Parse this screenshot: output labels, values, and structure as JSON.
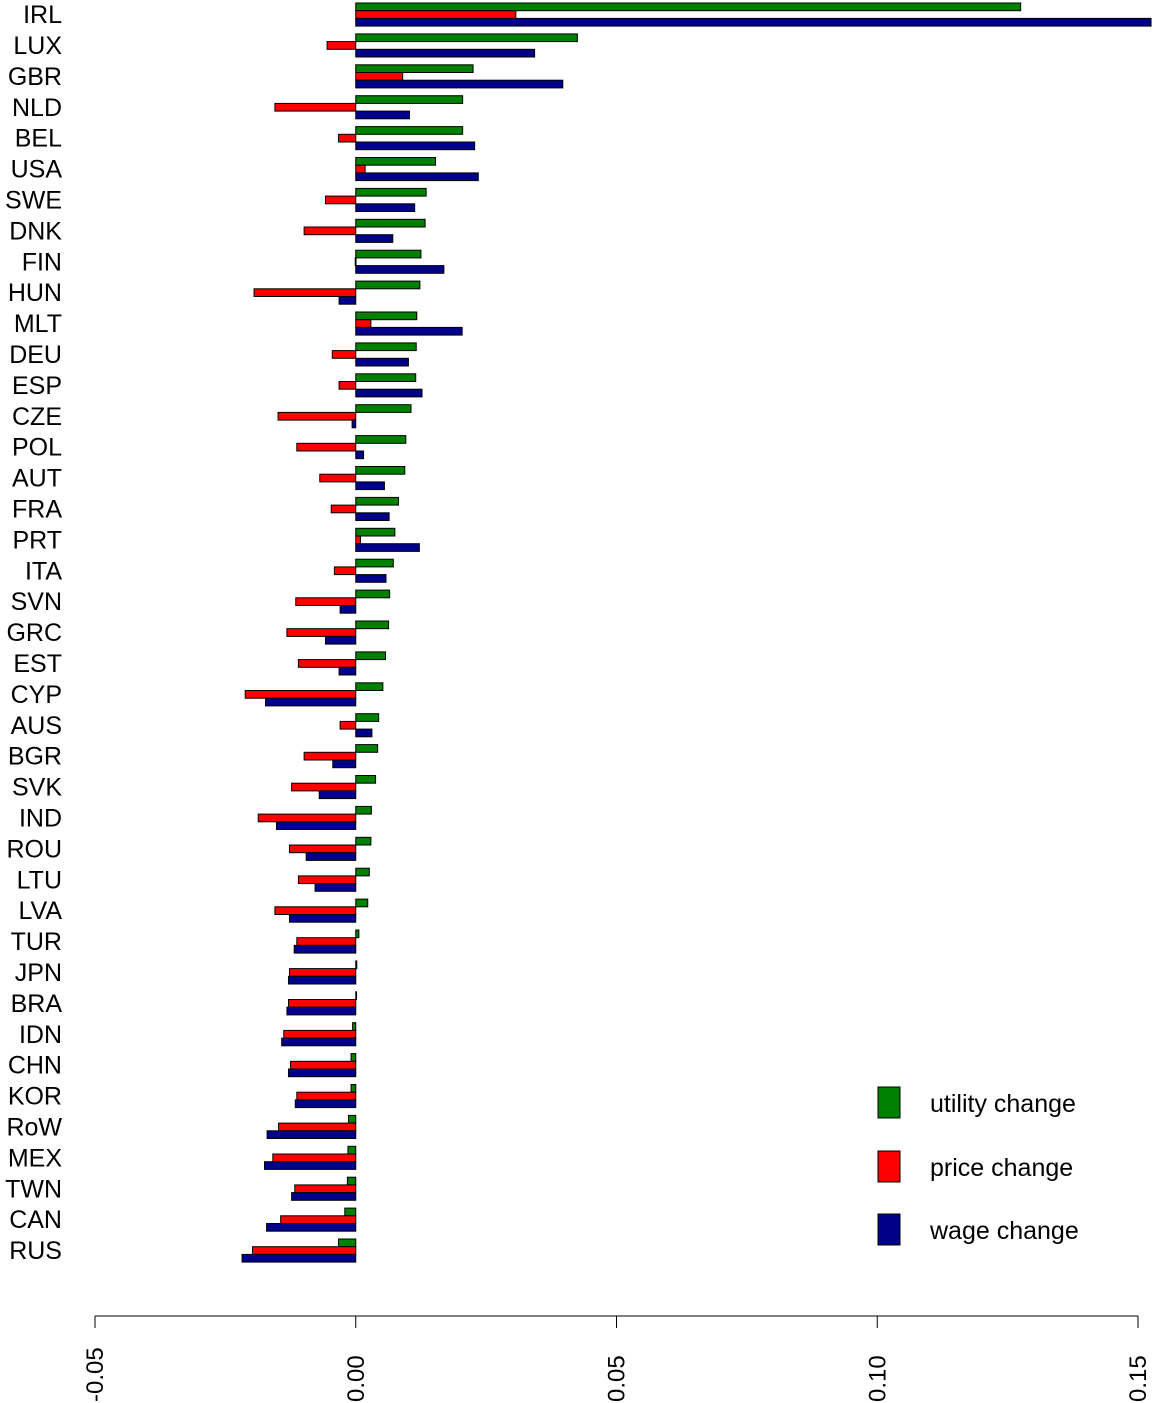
{
  "chart_data": {
    "type": "bar",
    "orientation": "horizontal",
    "categories": [
      "IRL",
      "LUX",
      "GBR",
      "NLD",
      "BEL",
      "USA",
      "SWE",
      "DNK",
      "FIN",
      "HUN",
      "MLT",
      "DEU",
      "ESP",
      "CZE",
      "POL",
      "AUT",
      "FRA",
      "PRT",
      "ITA",
      "SVN",
      "GRC",
      "EST",
      "CYP",
      "AUS",
      "BGR",
      "SVK",
      "IND",
      "ROU",
      "LTU",
      "LVA",
      "TUR",
      "JPN",
      "BRA",
      "IDN",
      "CHN",
      "KOR",
      "RoW",
      "MEX",
      "TWN",
      "CAN",
      "RUS"
    ],
    "series": [
      {
        "name": "utility change",
        "color": "#008000",
        "values": [
          0.1275,
          0.0425,
          0.0225,
          0.0205,
          0.0205,
          0.0153,
          0.0135,
          0.0133,
          0.0125,
          0.0123,
          0.0117,
          0.0116,
          0.0115,
          0.0106,
          0.0096,
          0.0094,
          0.0082,
          0.0075,
          0.0072,
          0.0065,
          0.0063,
          0.0057,
          0.0052,
          0.0044,
          0.0042,
          0.0038,
          0.003,
          0.0029,
          0.0026,
          0.0023,
          0.0006,
          0.0002,
          0.0001,
          -0.0006,
          -0.0009,
          -0.0009,
          -0.0014,
          -0.0015,
          -0.0016,
          -0.0021,
          -0.0033
        ]
      },
      {
        "name": "price change",
        "color": "#ff0000",
        "values": [
          0.0307,
          -0.0055,
          0.009,
          -0.0155,
          -0.0033,
          0.0018,
          -0.0058,
          -0.0099,
          -0.0001,
          -0.0195,
          0.0029,
          -0.0045,
          -0.0032,
          -0.0149,
          -0.0113,
          -0.0069,
          -0.0047,
          0.0009,
          -0.0041,
          -0.0115,
          -0.0132,
          -0.011,
          -0.0212,
          -0.003,
          -0.0099,
          -0.0123,
          -0.0187,
          -0.0127,
          -0.011,
          -0.0155,
          -0.0113,
          -0.0127,
          -0.0129,
          -0.0138,
          -0.0125,
          -0.0113,
          -0.0148,
          -0.0159,
          -0.0117,
          -0.0144,
          -0.0198
        ]
      },
      {
        "name": "wage change",
        "color": "#00008b",
        "values": [
          0.1525,
          0.0343,
          0.0397,
          0.0103,
          0.0228,
          0.0235,
          0.0113,
          0.0071,
          0.0169,
          -0.0032,
          0.0204,
          0.0101,
          0.0127,
          -0.0007,
          0.0015,
          0.0055,
          0.0064,
          0.0122,
          0.0058,
          -0.003,
          -0.0058,
          -0.0032,
          -0.0173,
          0.0031,
          -0.0044,
          -0.007,
          -0.0152,
          -0.0095,
          -0.0078,
          -0.0127,
          -0.0118,
          -0.0129,
          -0.0132,
          -0.0142,
          -0.0129,
          -0.0116,
          -0.017,
          -0.0175,
          -0.0123,
          -0.0171,
          -0.0218
        ]
      }
    ],
    "xlim": [
      -0.05,
      0.15
    ],
    "xticks": [
      -0.05,
      0.0,
      0.05,
      0.1,
      0.15
    ],
    "xtick_labels": [
      "-0.05",
      "0.00",
      "0.05",
      "0.10",
      "0.15"
    ],
    "xlabel": "",
    "ylabel": "",
    "title": "",
    "legend_position": "bottom-right",
    "grid": false
  }
}
